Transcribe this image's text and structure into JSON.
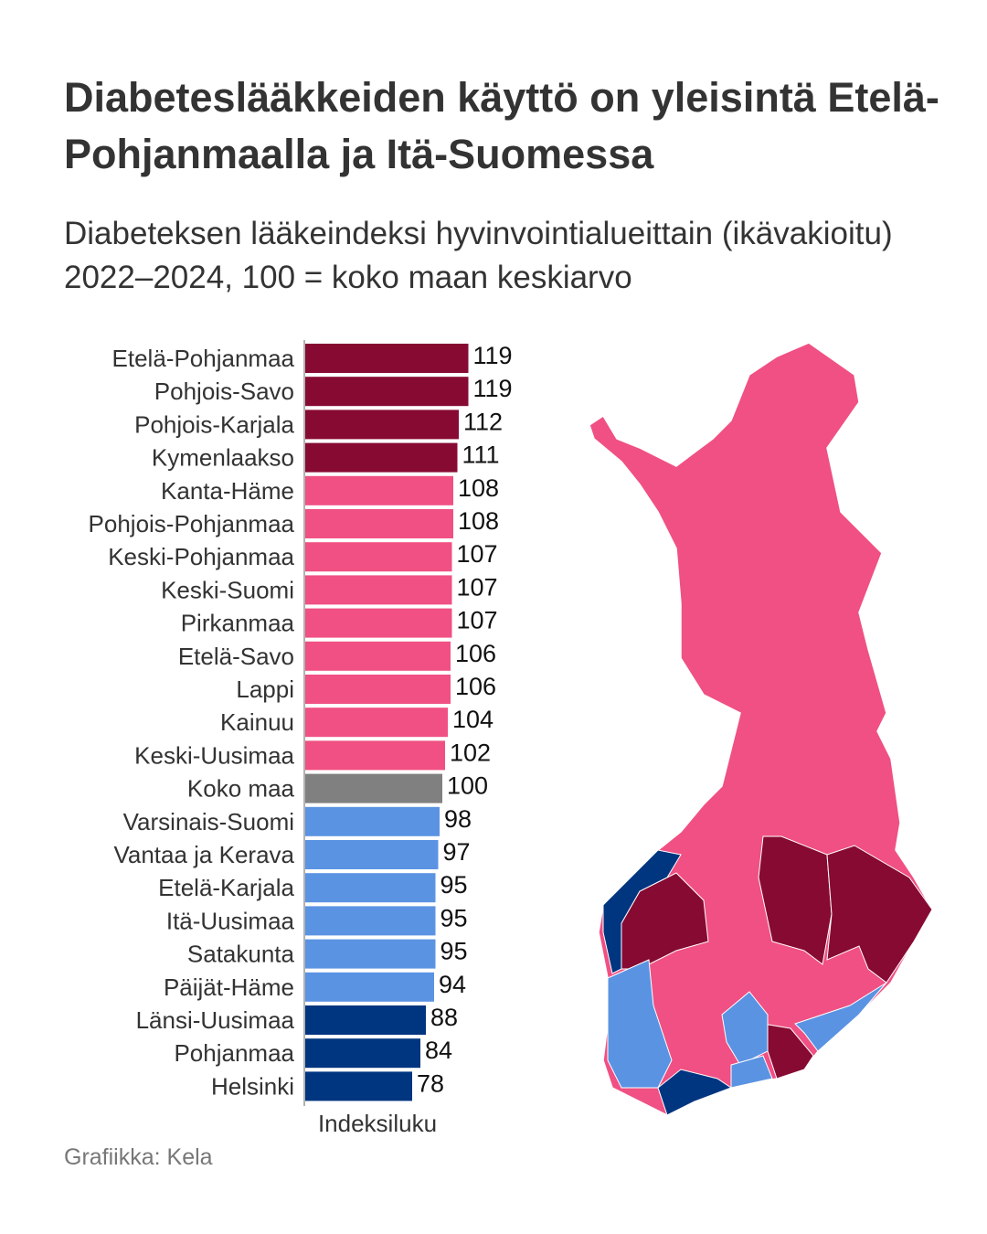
{
  "title": "Diabeteslääkkeiden käyttö on yleisintä Etelä-Pohjanmaalla ja Itä-Suomessa",
  "subtitle": "Diabeteksen lääkeindeksi hyvinvointialueittain (ikävakioitu) 2022–2024, 100 = koko maan keskiarvo",
  "source": "Grafiikka: Kela",
  "colors": {
    "high": "#870a33",
    "above": "#f05083",
    "average": "#808080",
    "below": "#5b93e3",
    "low": "#003580"
  },
  "chart_data": {
    "type": "bar",
    "orientation": "horizontal",
    "title": "Diabeteslääkkeiden käyttö on yleisintä Etelä-Pohjanmaalla ja Itä-Suomessa",
    "xlabel": "Indeksiluku",
    "xlim": [
      0,
      119
    ],
    "categories": [
      "Etelä-Pohjanmaa",
      "Pohjois-Savo",
      "Pohjois-Karjala",
      "Kymenlaakso",
      "Kanta-Häme",
      "Pohjois-Pohjanmaa",
      "Keski-Pohjanmaa",
      "Keski-Suomi",
      "Pirkanmaa",
      "Etelä-Savo",
      "Lappi",
      "Kainuu",
      "Keski-Uusimaa",
      "Koko maa",
      "Varsinais-Suomi",
      "Vantaa ja Kerava",
      "Etelä-Karjala",
      "Itä-Uusimaa",
      "Satakunta",
      "Päijät-Häme",
      "Länsi-Uusimaa",
      "Pohjanmaa",
      "Helsinki"
    ],
    "values": [
      119,
      119,
      112,
      111,
      108,
      108,
      107,
      107,
      107,
      106,
      106,
      104,
      102,
      100,
      98,
      97,
      95,
      95,
      95,
      94,
      88,
      84,
      78
    ],
    "groups": [
      "high",
      "high",
      "high",
      "high",
      "above",
      "above",
      "above",
      "above",
      "above",
      "above",
      "above",
      "above",
      "above",
      "average",
      "below",
      "below",
      "below",
      "below",
      "below",
      "below",
      "low",
      "low",
      "low"
    ]
  }
}
